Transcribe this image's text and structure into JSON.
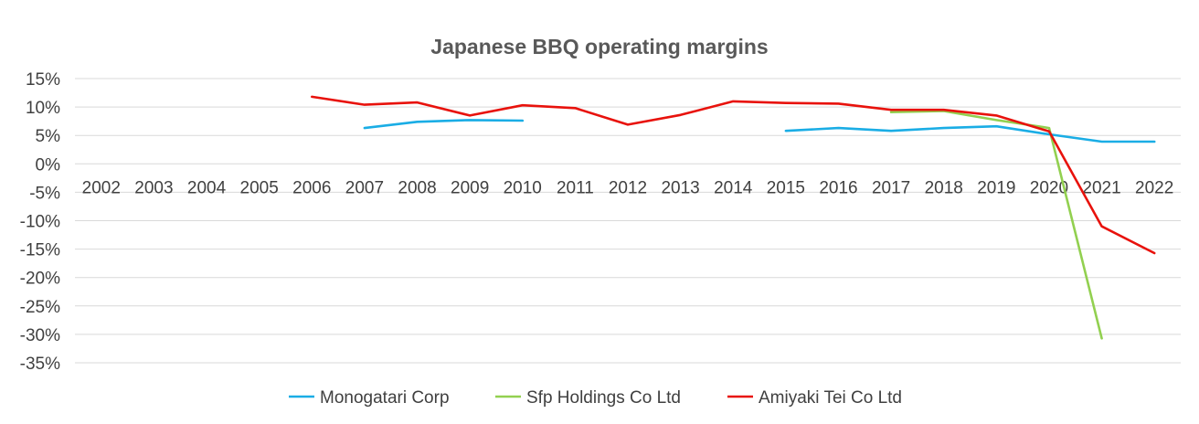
{
  "chart_data": {
    "type": "line",
    "title": "Japanese BBQ operating margins",
    "xlabel": "",
    "ylabel": "",
    "x": [
      "2002",
      "2003",
      "2004",
      "2005",
      "2006",
      "2007",
      "2008",
      "2009",
      "2010",
      "2011",
      "2012",
      "2013",
      "2014",
      "2015",
      "2016",
      "2017",
      "2018",
      "2019",
      "2020",
      "2021",
      "2022"
    ],
    "ylim": [
      -35,
      15
    ],
    "yticks": [
      "15%",
      "10%",
      "5%",
      "0%",
      "-5%",
      "-10%",
      "-15%",
      "-20%",
      "-25%",
      "-30%",
      "-35%"
    ],
    "ytick_values": [
      15,
      10,
      5,
      0,
      -5,
      -10,
      -15,
      -20,
      -25,
      -30,
      -35
    ],
    "grid": true,
    "legend_position": "bottom",
    "series": [
      {
        "name": "Monogatari Corp",
        "color": "#1AADE5",
        "values": [
          null,
          null,
          null,
          null,
          null,
          6.3,
          7.4,
          7.7,
          7.6,
          null,
          null,
          null,
          null,
          5.8,
          6.3,
          5.8,
          6.3,
          6.6,
          5.2,
          3.9,
          3.9
        ]
      },
      {
        "name": "Sfp Holdings Co Ltd",
        "color": "#92D050",
        "values": [
          null,
          null,
          null,
          null,
          null,
          null,
          null,
          null,
          null,
          null,
          null,
          null,
          null,
          null,
          null,
          9.1,
          9.3,
          7.7,
          6.3,
          -30.7,
          null
        ]
      },
      {
        "name": "Amiyaki Tei Co Ltd",
        "color": "#E8120C",
        "values": [
          null,
          null,
          null,
          null,
          11.8,
          10.4,
          10.8,
          8.5,
          10.3,
          9.8,
          6.9,
          8.6,
          11.0,
          10.7,
          10.6,
          9.5,
          9.5,
          8.5,
          5.7,
          -11.0,
          -15.7
        ]
      }
    ]
  }
}
